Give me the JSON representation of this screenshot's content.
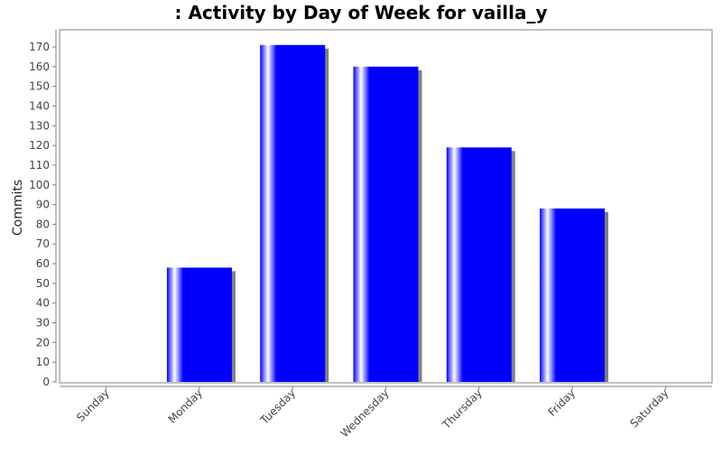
{
  "chart_data": {
    "type": "bar",
    "title": ": Activity by Day of Week for vailla_y",
    "xlabel": "",
    "ylabel": "Commits",
    "categories": [
      "Sunday",
      "Monday",
      "Tuesday",
      "Wednesday",
      "Thursday",
      "Friday",
      "Saturday"
    ],
    "series": [
      {
        "values": [
          0,
          58,
          171,
          160,
          119,
          88,
          0
        ],
        "color": "#0000ff"
      }
    ],
    "ylim": [
      0,
      179
    ],
    "yticks": [
      0,
      10,
      20,
      30,
      40,
      50,
      60,
      70,
      80,
      90,
      100,
      110,
      120,
      130,
      140,
      150,
      160,
      170
    ],
    "grid": false,
    "legend": "none",
    "colors": {
      "bar": "#0000ff",
      "shadow": "#808080",
      "plot_border": "#808080",
      "text": "#444444",
      "title": "#000000"
    }
  }
}
